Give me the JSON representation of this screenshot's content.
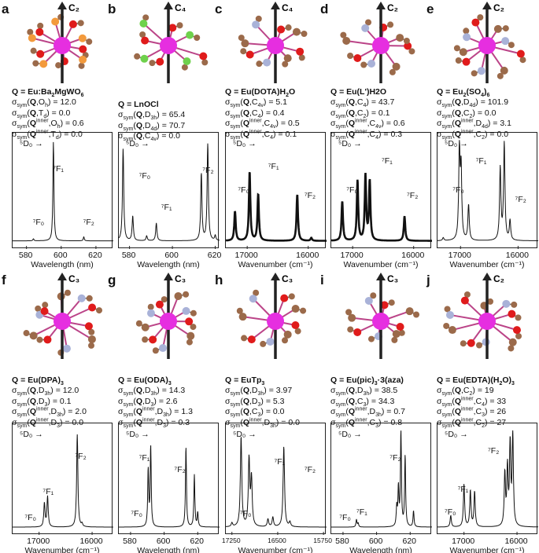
{
  "chart_data": [
    {
      "panel": "a",
      "type": "line",
      "title_parts": [
        {
          "t": "Q",
          "b": 1
        },
        {
          "t": " = Eu:Ba"
        },
        {
          "t": "2",
          "sub": 1
        },
        {
          "t": "MgWO"
        },
        {
          "t": "6",
          "sub": 1
        }
      ],
      "sym": [
        {
          "q": "Q",
          "g": "O",
          "gs": "h",
          "v": "12.0"
        },
        {
          "q": "Q",
          "g": "T",
          "gs": "d",
          "v": "0.0"
        },
        {
          "q": "Q",
          "inner": 1,
          "g": "O",
          "gs": "h",
          "v": "0.6"
        },
        {
          "q": "Q",
          "inner": 1,
          "g": "T",
          "gs": "d",
          "v": "0.0"
        }
      ],
      "axis_symbol": "C₂",
      "xlabel": "Wavelength (nm)",
      "xlim": [
        572,
        630
      ],
      "xticks": [
        580,
        600,
        620
      ],
      "peaks": [
        [
          584,
          0.02
        ],
        [
          595.5,
          1.0
        ],
        [
          613,
          0.04
        ]
      ],
      "labels": {
        "d0": "⁵D₀ →",
        "f0": "⁷F₀",
        "f1": "⁷F₁",
        "f2": "⁷F₂"
      }
    },
    {
      "panel": "b",
      "type": "line",
      "title_parts": [
        {
          "t": "Q",
          "b": 1
        },
        {
          "t": " = LnOCl"
        }
      ],
      "sym": [
        {
          "q": "Q",
          "g": "D",
          "gs": "3h",
          "v": "65.4"
        },
        {
          "q": "Q",
          "g": "D",
          "gs": "4d",
          "v": "70.7"
        },
        {
          "q": "Q",
          "g": "C",
          "gs": "4v",
          "v": "0.0"
        }
      ],
      "axis_symbol": "C₄",
      "xlabel": "Wavelength (nm)",
      "xlim": [
        575,
        622
      ],
      "xticks": [
        580,
        600,
        620
      ],
      "peaks": [
        [
          577,
          0.93
        ],
        [
          581.5,
          0.25
        ],
        [
          588,
          0.05
        ],
        [
          592.5,
          0.18
        ],
        [
          613.5,
          0.68
        ],
        [
          616.5,
          0.98
        ],
        [
          620,
          0.05
        ]
      ],
      "labels": {
        "d0": "⁵D₀ →",
        "f0": "⁷F₀",
        "f1": "⁷F₁",
        "f2": "⁷F₂"
      }
    },
    {
      "panel": "c",
      "type": "line",
      "title_parts": [
        {
          "t": "Q",
          "b": 1
        },
        {
          "t": " = Eu(DOTA)H"
        },
        {
          "t": "2",
          "sub": 1
        },
        {
          "t": "O"
        }
      ],
      "sym": [
        {
          "q": "Q",
          "g": "C",
          "gs": "4v",
          "v": "5.1"
        },
        {
          "q": "Q",
          "g": "C",
          "gs": "4",
          "v": "0.4"
        },
        {
          "q": "Q",
          "inner": 1,
          "g": "C",
          "gs": "4v",
          "v": "0.5"
        },
        {
          "q": "Q",
          "inner": 1,
          "g": "C",
          "gs": "4",
          "v": "0.1"
        }
      ],
      "axis_symbol": "C₄",
      "xlabel": "Wavenumber (cm⁻¹)",
      "xlim": [
        17350,
        15700
      ],
      "xticks": [
        17000,
        16000
      ],
      "peaks": [
        [
          17200,
          0.3
        ],
        [
          16960,
          0.7
        ],
        [
          16820,
          0.47
        ],
        [
          16180,
          0.47
        ],
        [
          15950,
          0.03
        ]
      ],
      "labels": {
        "d0": "⁵D₀ →",
        "f0": "⁷F₀",
        "f1": "⁷F₁",
        "f2": "⁷F₂"
      }
    },
    {
      "panel": "d",
      "type": "line",
      "title_parts": [
        {
          "t": "Q",
          "b": 1
        },
        {
          "t": " = Eu(L')H2O"
        }
      ],
      "sym": [
        {
          "q": "Q",
          "g": "C",
          "gs": "4",
          "v": "43.7"
        },
        {
          "q": "Q",
          "g": "C",
          "gs": "2",
          "v": "0.1"
        },
        {
          "q": "Q",
          "inner": 1,
          "g": "C",
          "gs": "4v",
          "v": "0.6"
        },
        {
          "q": "Q",
          "inner": 1,
          "g": "C",
          "gs": "4",
          "v": "0.3"
        }
      ],
      "axis_symbol": "C₂",
      "xlabel": "Wavenumber (cm⁻¹)",
      "xlim": [
        17350,
        15700
      ],
      "xticks": [
        17000,
        16000
      ],
      "peaks": [
        [
          17170,
          0.4
        ],
        [
          16920,
          0.61
        ],
        [
          16790,
          0.66
        ],
        [
          16720,
          0.6
        ],
        [
          16150,
          0.25
        ]
      ],
      "labels": {
        "d0": "⁵D₀ →",
        "f0": "⁷F₀",
        "f1": "⁷F₁",
        "f2": "⁷F₂"
      }
    },
    {
      "panel": "e",
      "type": "line",
      "title_parts": [
        {
          "t": "Q",
          "b": 1
        },
        {
          "t": " = Eu"
        },
        {
          "t": "2",
          "sub": 1
        },
        {
          "t": "(SO"
        },
        {
          "t": "4",
          "sub": 1
        },
        {
          "t": ")"
        },
        {
          "t": "6",
          "sub": 1
        }
      ],
      "sym": [
        {
          "q": "Q",
          "g": "D",
          "gs": "4d",
          "v": "101.9"
        },
        {
          "q": "Q",
          "g": "C",
          "gs": "2",
          "v": "0.0"
        },
        {
          "q": "Q",
          "inner": 1,
          "g": "D",
          "gs": "4d",
          "v": "3.1"
        },
        {
          "q": "Q",
          "inner": 1,
          "g": "C",
          "gs": "2",
          "v": "0.0"
        }
      ],
      "axis_symbol": "C₂",
      "xlabel": "Wavenumber (cm⁻¹)",
      "xlim": [
        17400,
        15650
      ],
      "xticks": [
        17000,
        16000
      ],
      "peaks": [
        [
          17300,
          0.03
        ],
        [
          17020,
          0.9
        ],
        [
          16990,
          0.7
        ],
        [
          16860,
          0.36
        ],
        [
          16310,
          0.73
        ],
        [
          16240,
          0.98
        ],
        [
          16140,
          0.2
        ]
      ],
      "labels": {
        "d0": "⁵D₀ →",
        "f0": "⁷F₀",
        "f1": "⁷F₁",
        "f2": "⁷F₂"
      }
    },
    {
      "panel": "f",
      "type": "line",
      "title_parts": [
        {
          "t": "Q",
          "b": 1
        },
        {
          "t": " = Eu(DPA)"
        },
        {
          "t": "3",
          "sub": 1
        }
      ],
      "sym": [
        {
          "q": "Q",
          "g": "D",
          "gs": "3h",
          "v": "12.0"
        },
        {
          "q": "Q",
          "g": "D",
          "gs": "3",
          "v": "0.1"
        },
        {
          "q": "Q",
          "inner": 1,
          "g": "D",
          "gs": "3h",
          "v": "2.0"
        },
        {
          "q": "Q",
          "inner": 1,
          "g": "D",
          "gs": "3",
          "v": "0.0"
        }
      ],
      "axis_symbol": "C₃",
      "xlabel": "Wavenumber (cm⁻¹)",
      "xlim": [
        17500,
        15600
      ],
      "xticks": [
        17000,
        16000
      ],
      "peaks": [
        [
          16900,
          0.25
        ],
        [
          16840,
          0.32
        ],
        [
          16280,
          0.98
        ],
        [
          16190,
          0.03
        ]
      ],
      "labels": {
        "d0": "⁵D₀ →",
        "f0": "⁷F₀",
        "f1": "⁷F₁",
        "f2": "⁷F₂"
      }
    },
    {
      "panel": "g",
      "type": "line",
      "title_parts": [
        {
          "t": "Q",
          "b": 1
        },
        {
          "t": " = Eu(ODA)"
        },
        {
          "t": "3",
          "sub": 1
        }
      ],
      "sym": [
        {
          "q": "Q",
          "g": "D",
          "gs": "3h",
          "v": "14.3"
        },
        {
          "q": "Q",
          "g": "D",
          "gs": "3",
          "v": "2.6"
        },
        {
          "q": "Q",
          "inner": 1,
          "g": "D",
          "gs": "3h",
          "v": "1.3"
        },
        {
          "q": "Q",
          "inner": 1,
          "g": "D",
          "gs": "3",
          "v": "0.3"
        }
      ],
      "axis_symbol": "C₃",
      "xlabel": "Wavelength (nm)",
      "xlim": [
        573,
        633
      ],
      "xticks": [
        580,
        600,
        620
      ],
      "peaks": [
        [
          590.5,
          0.6
        ],
        [
          592,
          0.85
        ],
        [
          613,
          0.85
        ],
        [
          618,
          0.55
        ],
        [
          620,
          0.15
        ]
      ],
      "labels": {
        "d0": "⁵D₀ →",
        "f0": "⁷F₀",
        "f1": "⁷F₁",
        "f2": "⁷F₂"
      }
    },
    {
      "panel": "h",
      "type": "line",
      "title_parts": [
        {
          "t": "Q",
          "b": 1
        },
        {
          "t": " = EuTp"
        },
        {
          "t": "3",
          "sub": 1
        }
      ],
      "sym": [
        {
          "q": "Q",
          "g": "D",
          "gs": "3h",
          "v": "3.97"
        },
        {
          "q": "Q",
          "g": "D",
          "gs": "3",
          "v": "5.3"
        },
        {
          "q": "Q",
          "g": "C",
          "gs": "3",
          "v": "0.0"
        },
        {
          "q": "Q",
          "inner": 1,
          "g": "D",
          "gs": "3h",
          "v": "0.0"
        }
      ],
      "axis_symbol": "C₃",
      "xlabel": "Wavenumber (cm⁻¹)",
      "xlim": [
        17350,
        15700
      ],
      "xticks": [
        17250,
        16500,
        15750
      ],
      "peaks": [
        [
          17250,
          0.04
        ],
        [
          17100,
          0.95
        ],
        [
          16970,
          0.7
        ],
        [
          16930,
          0.5
        ],
        [
          16660,
          0.08
        ],
        [
          16580,
          0.1
        ],
        [
          16400,
          0.85
        ],
        [
          16300,
          0.05
        ]
      ],
      "labels": {
        "d0": "⁵D₀ →",
        "f0": "⁷F₀",
        "f1": "⁷F₁",
        "f2": "⁷F₂"
      }
    },
    {
      "panel": "i",
      "type": "line",
      "title_parts": [
        {
          "t": "Q",
          "b": 1
        },
        {
          "t": " = Eu(pic)"
        },
        {
          "t": "3",
          "sub": 1
        },
        {
          "t": "·3(aza)"
        }
      ],
      "sym": [
        {
          "q": "Q",
          "g": "D",
          "gs": "3h",
          "v": "38.5"
        },
        {
          "q": "Q",
          "g": "C",
          "gs": "3",
          "v": "34.3"
        },
        {
          "q": "Q",
          "inner": 1,
          "g": "D",
          "gs": "3h",
          "v": "0.7"
        },
        {
          "q": "Q",
          "inner": 1,
          "g": "C",
          "gs": "3",
          "v": "0.8"
        }
      ],
      "axis_symbol": "C₃",
      "xlabel": "Wavelength (nm)",
      "xlim": [
        573,
        633
      ],
      "xticks": [
        580,
        600,
        620
      ],
      "peaks": [
        [
          588,
          0.08
        ],
        [
          589,
          0.04
        ],
        [
          612,
          0.2
        ],
        [
          613,
          0.4
        ],
        [
          614.5,
          1.0
        ],
        [
          617,
          0.75
        ],
        [
          622,
          0.17
        ]
      ],
      "labels": {
        "d0": "⁵D₀ →",
        "f0": "⁷F₀",
        "f1": "⁷F₁",
        "f2": "⁷F₂"
      }
    },
    {
      "panel": "j",
      "type": "line",
      "title_parts": [
        {
          "t": "Q",
          "b": 1
        },
        {
          "t": " = Eu(EDTA)(H"
        },
        {
          "t": "2",
          "sub": 1
        },
        {
          "t": "O)"
        },
        {
          "t": "3",
          "sub": 1
        }
      ],
      "sym": [
        {
          "q": "Q",
          "g": "C",
          "gs": "2",
          "v": "19"
        },
        {
          "q": "Q",
          "inner": 1,
          "g": "C",
          "gs": "4",
          "v": "33"
        },
        {
          "q": "Q",
          "inner": 1,
          "g": "C",
          "gs": "3",
          "v": "26"
        },
        {
          "q": "Q",
          "inner": 1,
          "g": "C",
          "gs": "2",
          "v": "27"
        }
      ],
      "axis_symbol": "C₂",
      "xlabel": "Wavenumber (cm⁻¹)",
      "xlim": [
        17500,
        15600
      ],
      "xticks": [
        17000,
        16000
      ],
      "peaks": [
        [
          17250,
          0.12
        ],
        [
          17000,
          0.45
        ],
        [
          16880,
          0.38
        ],
        [
          16800,
          0.37
        ],
        [
          16230,
          0.55
        ],
        [
          16180,
          0.6
        ],
        [
          16130,
          0.85
        ],
        [
          16080,
          0.97
        ]
      ],
      "labels": {
        "d0": "⁵D₀ →",
        "f0": "⁷F₀",
        "f1": "⁷F₁",
        "f2": "⁷F₂"
      }
    }
  ],
  "colors": {
    "europium": "#e62ee0",
    "oxygen": "#e01b1b",
    "carbon": "#9b6a4a",
    "nitrogen": "#a9b2d8",
    "chlorine": "#6fd14c",
    "tungsten": "#f39a3c",
    "sulfur": "#f3e83a",
    "line": "#111111"
  }
}
